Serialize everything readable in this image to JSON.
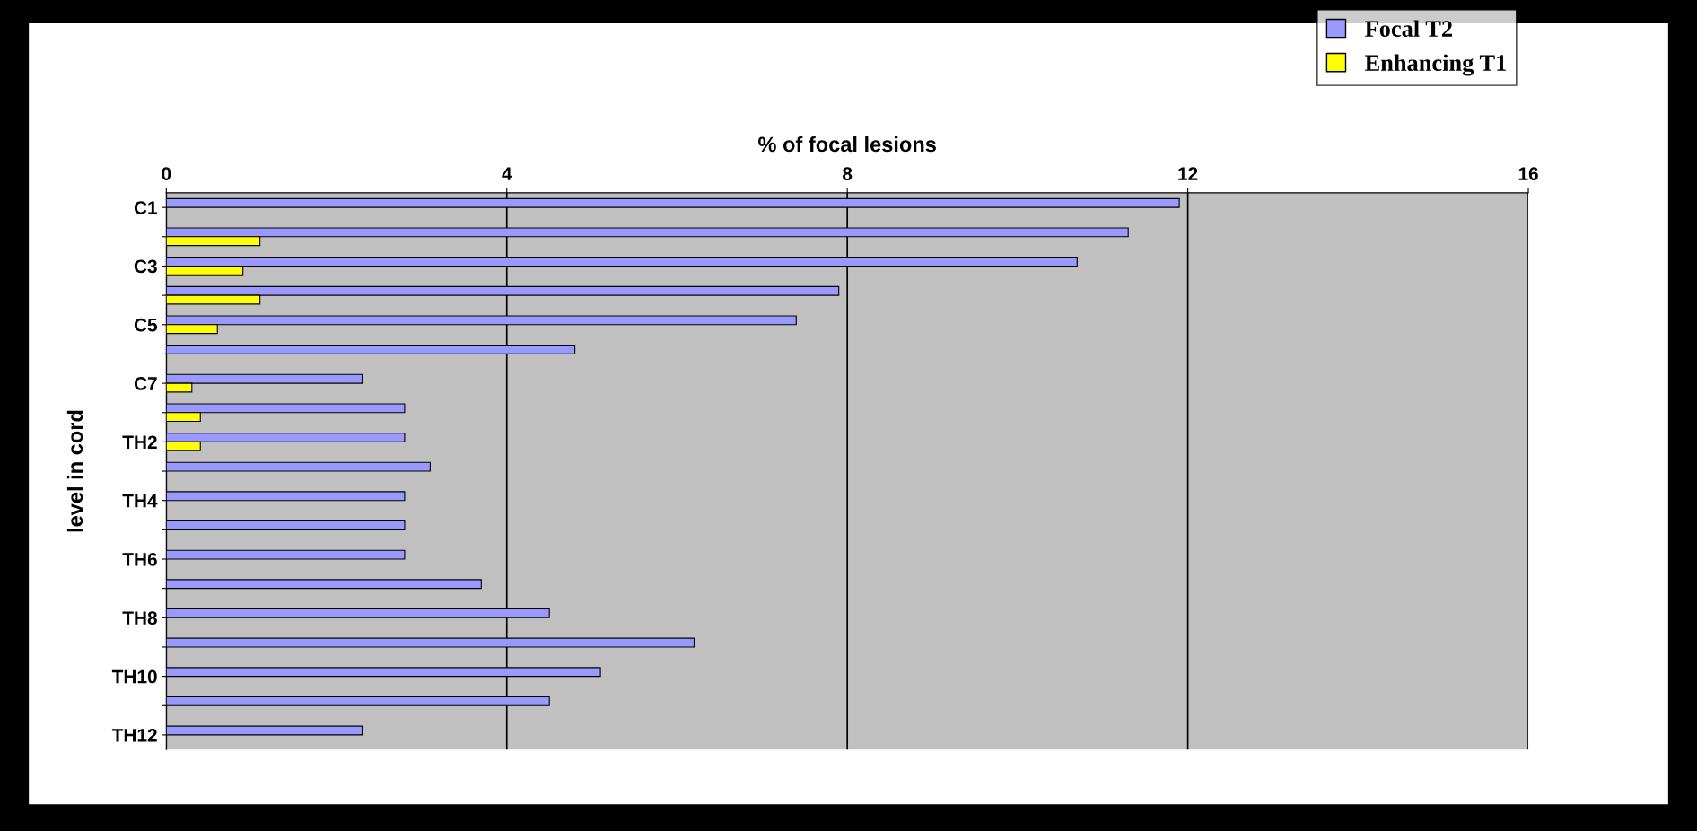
{
  "chart_data": {
    "type": "bar",
    "orientation": "horizontal",
    "xlabel": "% of focal lesions",
    "ylabel": "level in cord",
    "categories": [
      "C1",
      null,
      "C3",
      null,
      "C5",
      null,
      "C7",
      null,
      "TH2",
      null,
      "TH4",
      null,
      "TH6",
      null,
      "TH8",
      null,
      "TH10",
      null,
      "TH12"
    ],
    "series": [
      {
        "name": "Focal T2",
        "color": "#9999ff",
        "values": [
          11.9,
          11.3,
          10.7,
          7.9,
          7.4,
          4.8,
          2.3,
          2.8,
          2.8,
          3.1,
          2.8,
          2.8,
          2.8,
          3.7,
          4.5,
          6.2,
          5.1,
          4.5,
          2.3
        ]
      },
      {
        "name": "Enhancing T1",
        "color": "#ffff00",
        "values": [
          null,
          1.1,
          0.9,
          1.1,
          0.6,
          null,
          0.3,
          0.4,
          0.4,
          null,
          null,
          null,
          null,
          null,
          null,
          null,
          null,
          null,
          null
        ]
      }
    ],
    "xlim": [
      0,
      16
    ],
    "xticks": [
      0,
      4,
      8,
      12,
      16
    ],
    "grid": "x",
    "legend": "top right"
  }
}
